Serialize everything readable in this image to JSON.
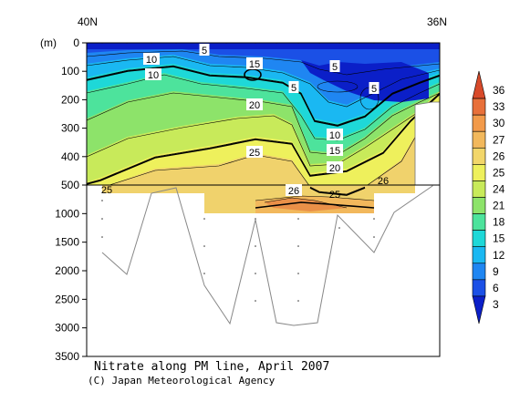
{
  "chart_data": {
    "type": "contour",
    "title": "Nitrate along PM line, April 2007",
    "credit": "(C) Japan Meteorological Agency",
    "y_unit": "(m)",
    "x_labels": [
      "40N",
      "36N"
    ],
    "y_ticks_upper": [
      0,
      100,
      200,
      300,
      400,
      500
    ],
    "y_ticks_lower": [
      1000,
      1500,
      2000,
      2500,
      3000,
      3500
    ],
    "y_break": 500,
    "ylim": [
      0,
      3500
    ],
    "colorbar": {
      "levels": [
        3,
        6,
        9,
        12,
        15,
        18,
        21,
        24,
        25,
        26,
        27,
        30,
        33,
        36
      ],
      "colors": [
        "#0b1fc8",
        "#1b50e6",
        "#1f86f2",
        "#1ab8f2",
        "#1ed8d8",
        "#4de39c",
        "#8de36a",
        "#c8ea5a",
        "#eef05c",
        "#f2d66a",
        "#f2b85c",
        "#f29a4a",
        "#e8703a",
        "#d84a2a"
      ]
    },
    "contour_labels": [
      "5",
      "10",
      "10",
      "15",
      "20",
      "5",
      "5",
      "5",
      "10",
      "15",
      "20",
      "25",
      "25",
      "26",
      "25",
      "26"
    ],
    "bottom_profile_depths": [
      1700,
      2080,
      1900,
      2300,
      2950,
      1100,
      2900,
      2980,
      2940,
      1000,
      1700,
      1000
    ]
  }
}
